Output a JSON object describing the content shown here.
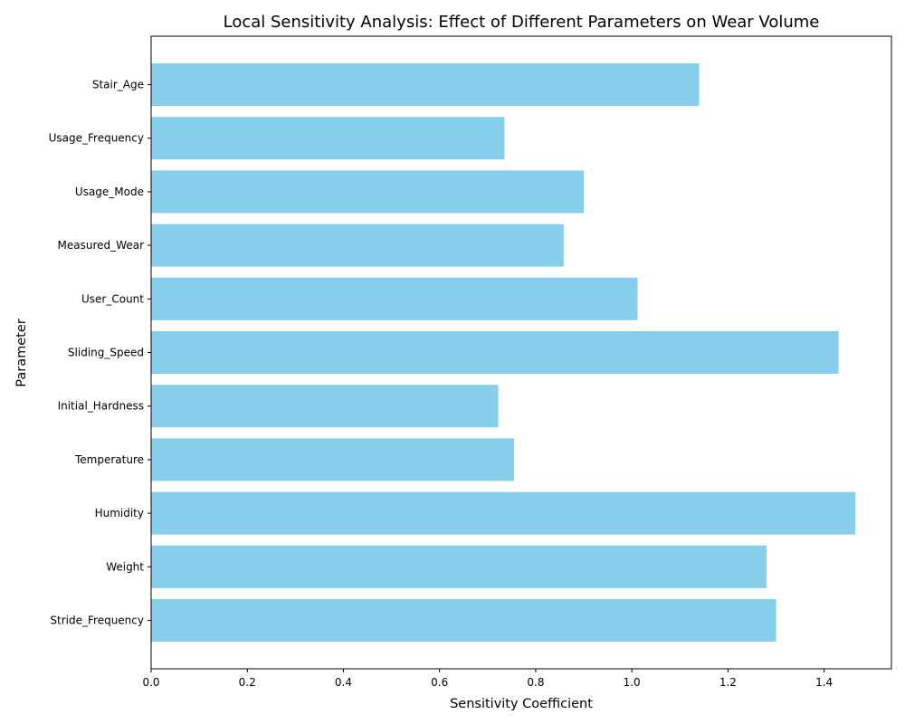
{
  "chart_data": {
    "type": "bar",
    "orientation": "horizontal",
    "title": "Local Sensitivity Analysis: Effect of Different Parameters on Wear Volume",
    "xlabel": "Sensitivity Coefficient",
    "ylabel": "Parameter",
    "xlim": [
      0,
      1.54
    ],
    "xticks": [
      0.0,
      0.2,
      0.4,
      0.6,
      0.8,
      1.0,
      1.2,
      1.4
    ],
    "xtick_labels": [
      "0.0",
      "0.2",
      "0.4",
      "0.6",
      "0.8",
      "1.0",
      "1.2",
      "1.4"
    ],
    "grid": false,
    "bar_color": "#87ceeb",
    "categories": [
      "Stride_Frequency",
      "Weight",
      "Humidity",
      "Temperature",
      "Initial_Hardness",
      "Sliding_Speed",
      "User_Count",
      "Measured_Wear",
      "Usage_Mode",
      "Usage_Frequency",
      "Stair_Age"
    ],
    "values": [
      1.3,
      1.28,
      1.465,
      0.755,
      0.722,
      1.43,
      1.012,
      0.858,
      0.9,
      0.735,
      1.14
    ]
  }
}
